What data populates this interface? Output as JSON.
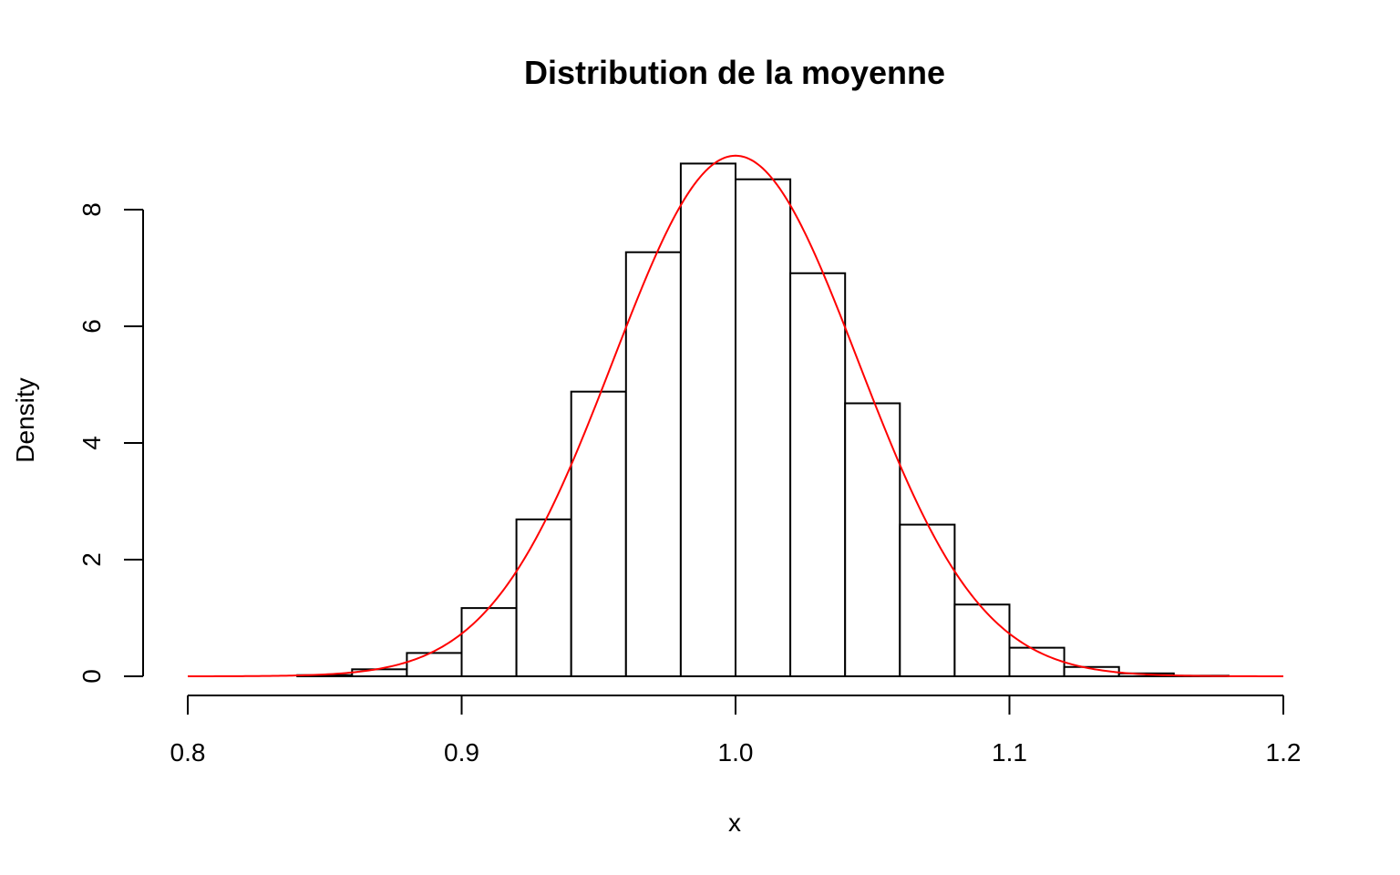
{
  "chart_data": {
    "type": "bar",
    "title": "Distribution de la moyenne",
    "xlabel": "x",
    "ylabel": "Density",
    "xlim": [
      0.8,
      1.2
    ],
    "ylim": [
      0,
      9.2
    ],
    "x_ticks": [
      "0.8",
      "0.9",
      "1.0",
      "1.1",
      "1.2"
    ],
    "y_ticks": [
      "0",
      "2",
      "4",
      "6",
      "8"
    ],
    "bin_edges": [
      0.84,
      0.86,
      0.88,
      0.9,
      0.92,
      0.94,
      0.96,
      0.98,
      1.0,
      1.02,
      1.04,
      1.06,
      1.08,
      1.1,
      1.12,
      1.14,
      1.16,
      1.18
    ],
    "series": [
      {
        "type": "histogram",
        "values": [
          0.02,
          0.12,
          0.4,
          1.17,
          2.69,
          4.88,
          7.27,
          8.79,
          8.52,
          6.91,
          4.68,
          2.6,
          1.23,
          0.49,
          0.16,
          0.05,
          0.01
        ],
        "color": "#000000"
      },
      {
        "type": "line",
        "distribution": "normal",
        "mean": 1.0,
        "sd": 0.0447,
        "color": "#ff0000"
      }
    ],
    "grid": false,
    "legend": "none"
  }
}
